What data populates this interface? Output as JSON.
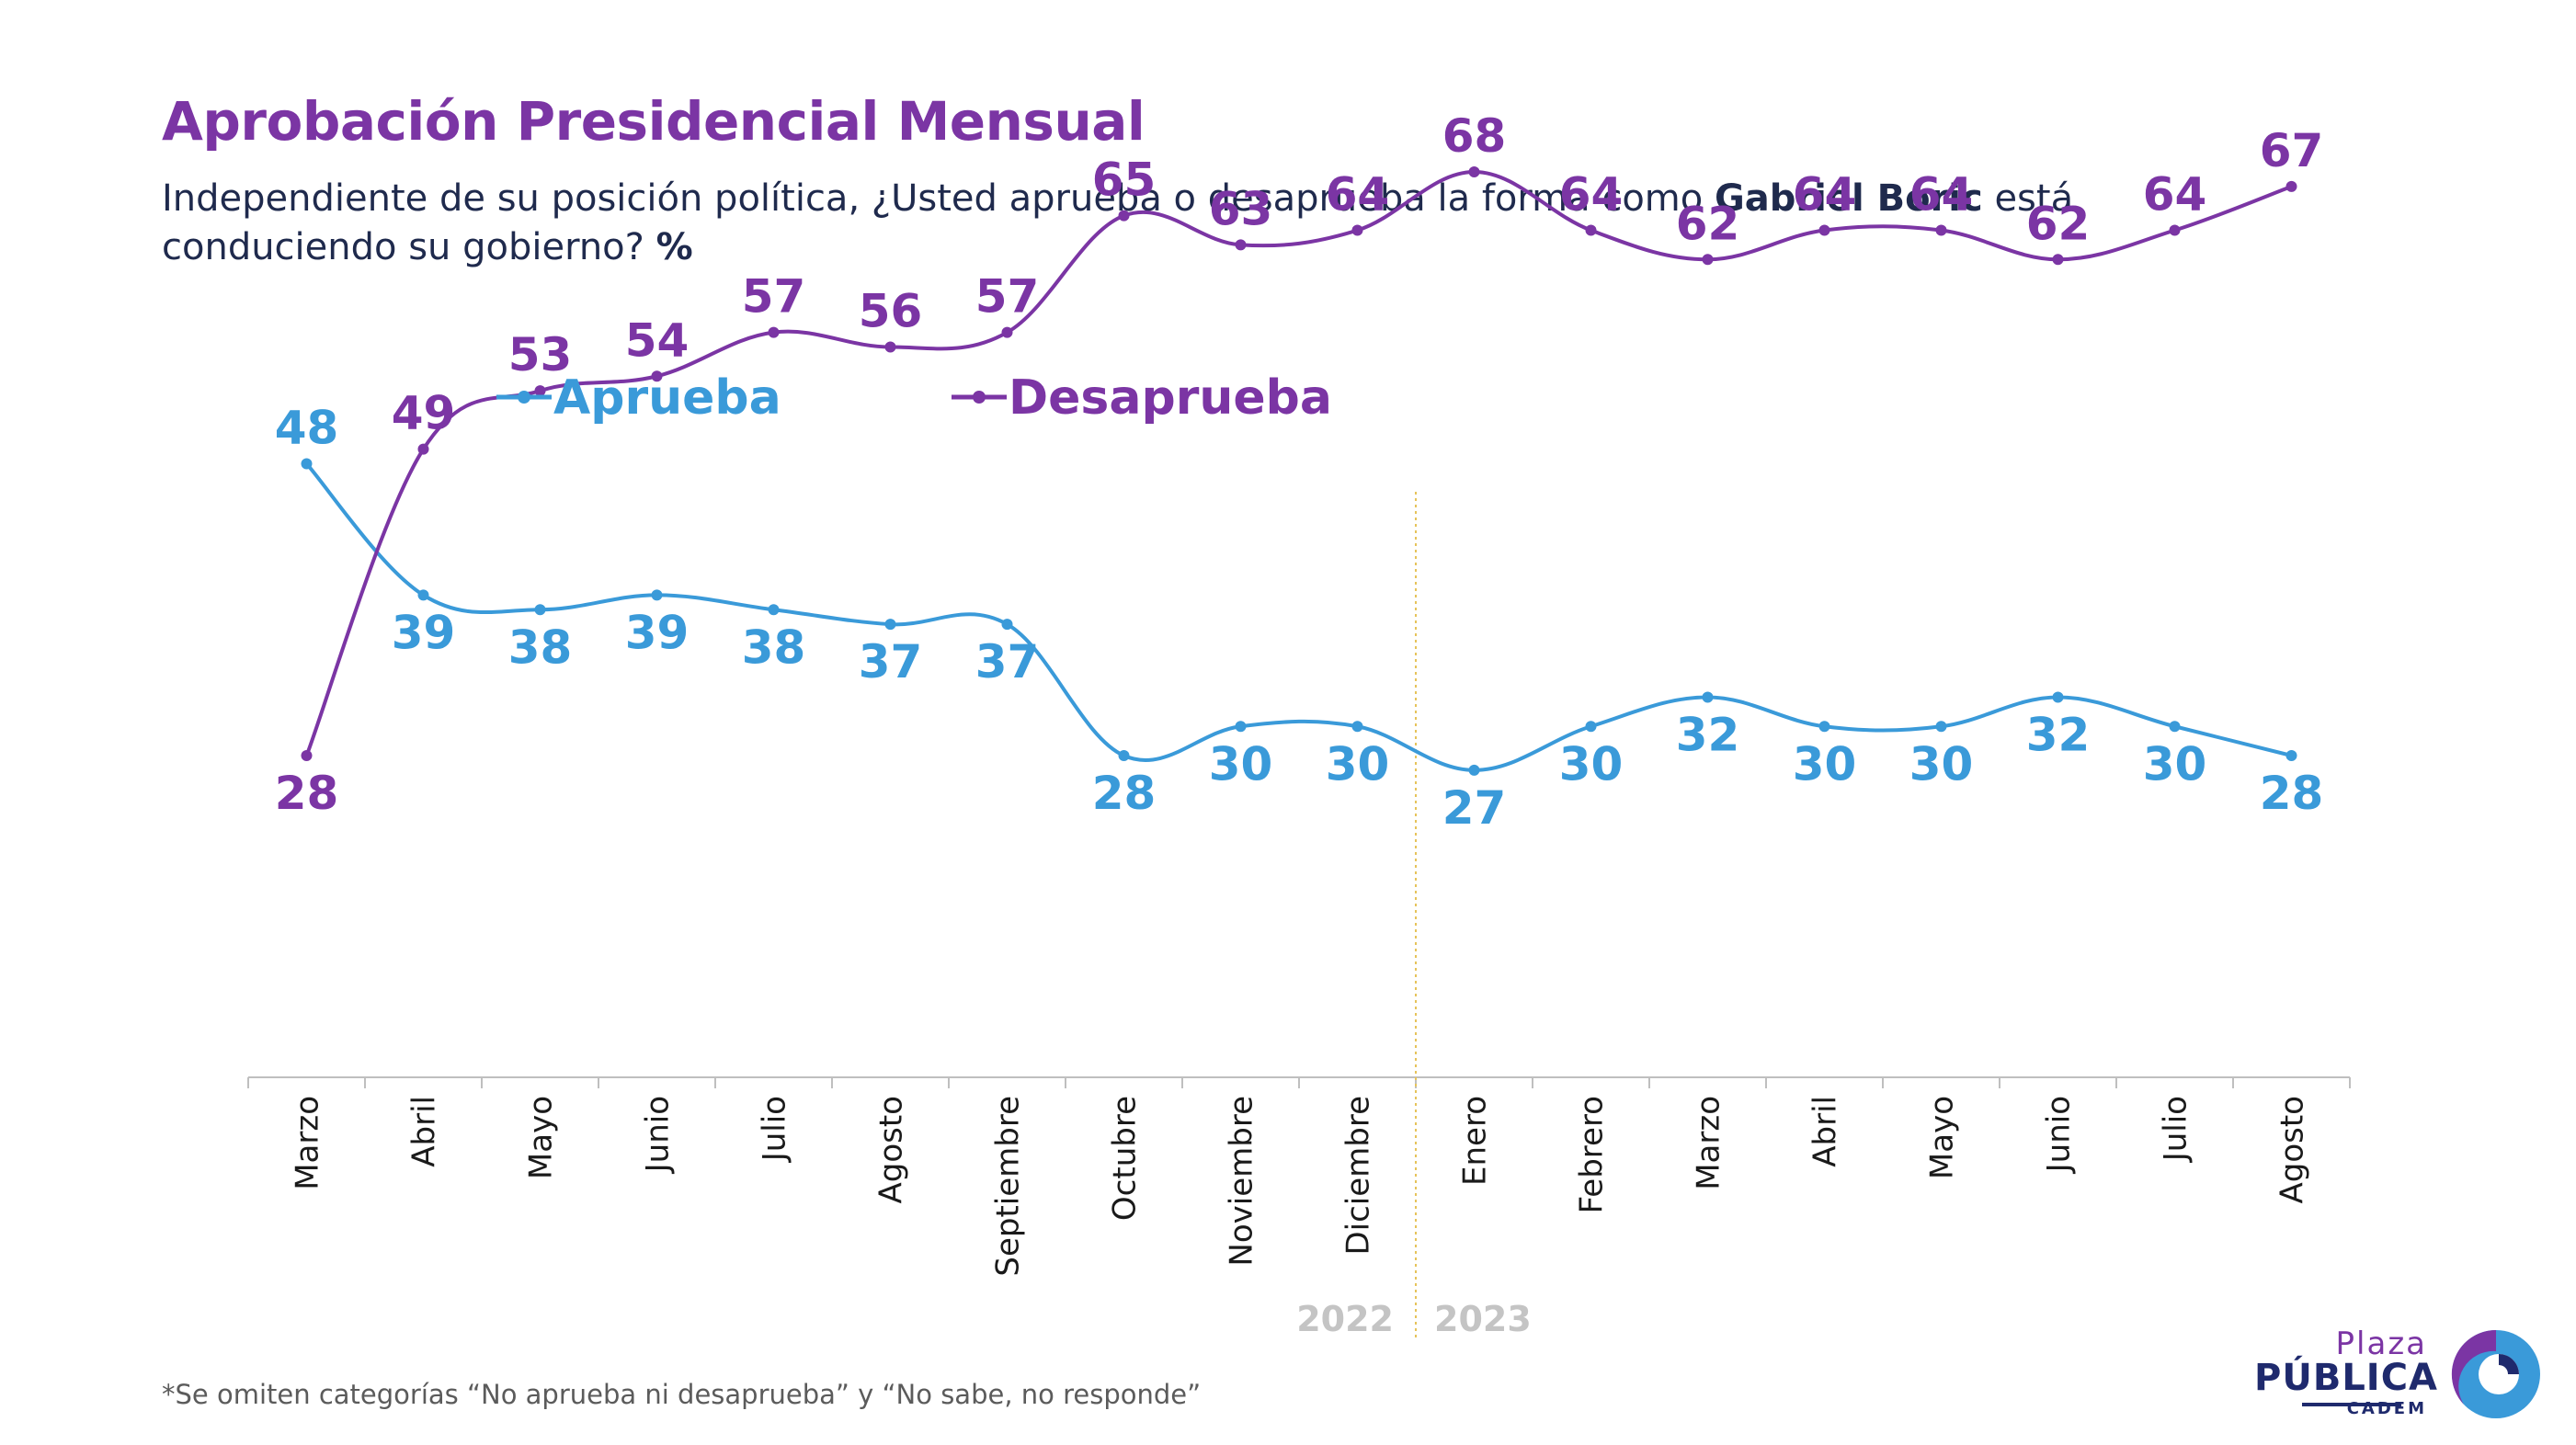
{
  "title": "Aprobación Presidencial Mensual",
  "subtitle": {
    "before": "Independiente de su posición política, ¿Usted aprueba o desaprueba la forma como ",
    "bold_name": "Gabriel Boric",
    "after": " está conduciendo su gobierno? ",
    "unit": "%"
  },
  "footnote": "*Se omiten categorías “No aprueba ni desaprueba” y “No sabe, no responde”",
  "logo": {
    "line1": "Plaza",
    "line2": "PÚBLICA",
    "line3": "CADEM"
  },
  "chart_data": {
    "type": "line",
    "categories": [
      "Marzo",
      "Abril",
      "Mayo",
      "Junio",
      "Julio",
      "Agosto",
      "Septiembre",
      "Octubre",
      "Noviembre",
      "Diciembre",
      "Enero",
      "Febrero",
      "Marzo",
      "Abril",
      "Mayo",
      "Junio",
      "Julio",
      "Agosto"
    ],
    "years": [
      {
        "label": "2022",
        "from_index": 0,
        "to_index": 9
      },
      {
        "label": "2023",
        "from_index": 10,
        "to_index": 17
      }
    ],
    "year_divider_between": [
      9,
      10
    ],
    "series": [
      {
        "name": "Aprueba",
        "color": "#3a9ad9",
        "label_position": "below",
        "values": [
          48,
          39,
          38,
          39,
          38,
          37,
          37,
          28,
          30,
          30,
          27,
          30,
          32,
          30,
          30,
          32,
          30,
          28
        ]
      },
      {
        "name": "Desaprueba",
        "color": "#7b35a4",
        "label_position": "above",
        "values": [
          28,
          49,
          53,
          54,
          57,
          56,
          57,
          65,
          63,
          64,
          68,
          64,
          62,
          64,
          64,
          62,
          64,
          67
        ]
      }
    ],
    "legend_position": "top-left",
    "grid": false,
    "ylim": [
      0,
      100
    ]
  }
}
